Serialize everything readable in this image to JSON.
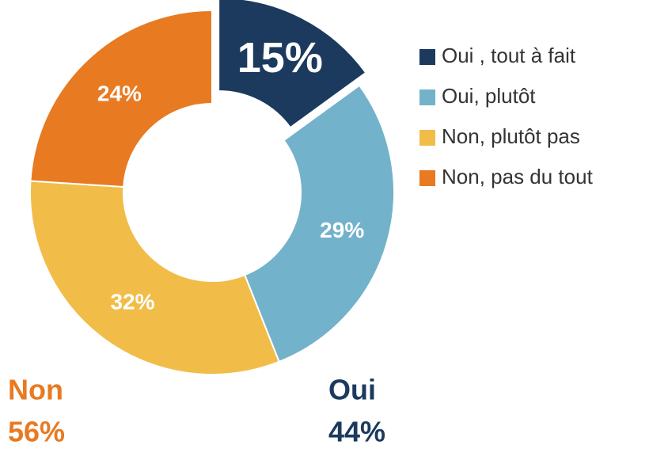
{
  "chart_data": {
    "type": "donut",
    "categories": [
      "Oui , tout à fait",
      "Oui, plutôt",
      "Non, plutôt pas",
      "Non, pas du tout"
    ],
    "values": [
      15,
      29,
      32,
      24
    ],
    "value_labels": [
      "15%",
      "29%",
      "32%",
      "24%"
    ],
    "colors": [
      "#1c3a5e",
      "#73b2cb",
      "#f1bd48",
      "#e87a22"
    ],
    "exploded": [
      true,
      false,
      false,
      false
    ],
    "legend": "right",
    "annotations": [
      {
        "text": "Non",
        "value_label": "56%",
        "color": "#e87a22"
      },
      {
        "text": "Oui",
        "value_label": "44%",
        "color": "#1c3a5e"
      }
    ]
  }
}
